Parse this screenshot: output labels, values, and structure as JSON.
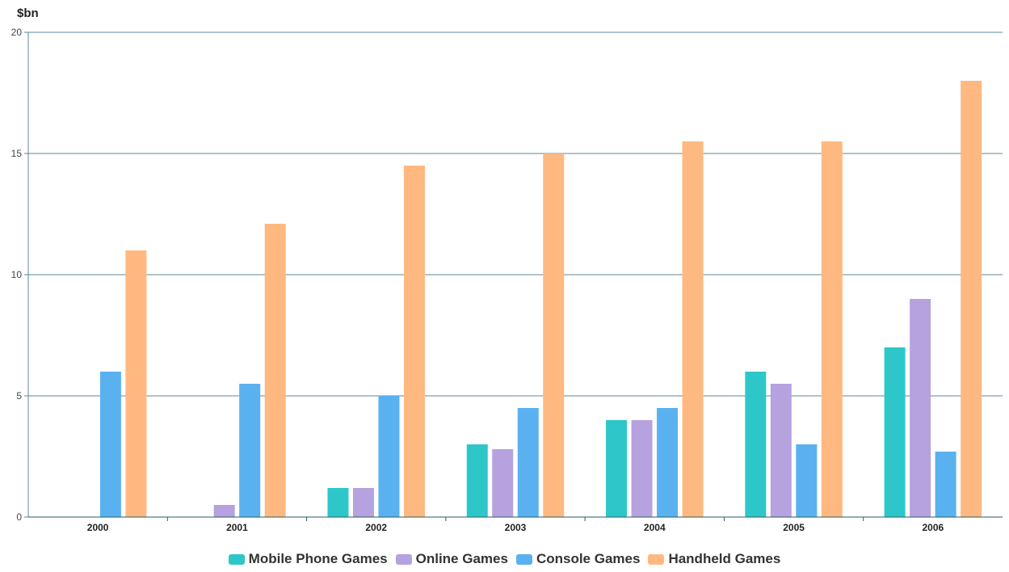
{
  "chart_data": {
    "type": "bar",
    "ylabel": "$bn",
    "ylim": [
      0,
      20
    ],
    "yticks": [
      0,
      5,
      10,
      15,
      20
    ],
    "categories": [
      "2000",
      "2001",
      "2002",
      "2003",
      "2004",
      "2005",
      "2006"
    ],
    "series": [
      {
        "name": "Mobile Phone Games",
        "color": "#2ec7c9",
        "values": [
          0,
          0,
          1.2,
          3,
          4,
          6,
          7
        ]
      },
      {
        "name": "Online Games",
        "color": "#b6a2de",
        "values": [
          0,
          0.5,
          1.2,
          2.8,
          4,
          5.5,
          9
        ]
      },
      {
        "name": "Console Games",
        "color": "#5ab1ef",
        "values": [
          6,
          5.5,
          5,
          4.5,
          4.5,
          3,
          2.7
        ]
      },
      {
        "name": "Handheld Games",
        "color": "#ffb980",
        "values": [
          11,
          12.1,
          14.5,
          15,
          15.5,
          15.5,
          18
        ]
      }
    ],
    "grid": true,
    "legend_position": "bottom"
  }
}
